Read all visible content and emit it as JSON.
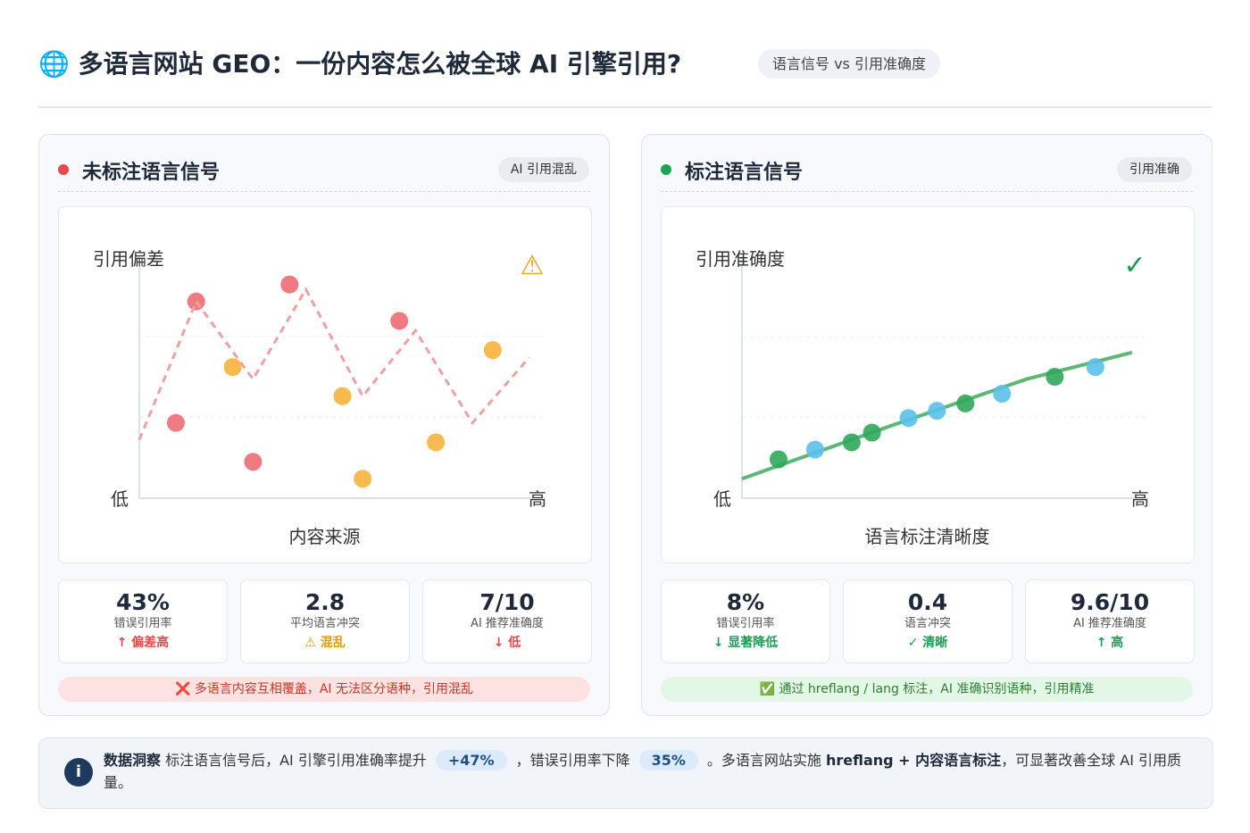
{
  "header": {
    "title": "🌐 多语言网站 GEO：一份内容怎么被全球 AI 引擎引用?",
    "badge": "语言信号 vs 引用准确度"
  },
  "panels": [
    {
      "title": "未标注语言信号",
      "dot_color": "#e5484d",
      "tag": "AI 引用混乱",
      "stats": [
        {
          "value": "43%",
          "label": "错误引用率",
          "note": "↑ 偏差高",
          "note_color": "#e5484d"
        },
        {
          "value": "2.8",
          "label": "平均语言冲突",
          "note": "⚠ 混乱",
          "note_color": "#e69b00"
        },
        {
          "value": "7/10",
          "label": "AI 推荐准确度",
          "note": "↓ 低",
          "note_color": "#e5484d"
        }
      ],
      "banner": "❌ 多语言内容互相覆盖，AI 无法区分语种，引用混乱",
      "banner_bg": "#fde2e2",
      "banner_color": "#c0392b"
    },
    {
      "title": "标注语言信号",
      "dot_color": "#1fa355",
      "tag": "引用准确",
      "stats": [
        {
          "value": "8%",
          "label": "错误引用率",
          "note": "↓ 显著降低",
          "note_color": "#1f9d55"
        },
        {
          "value": "0.4",
          "label": "语言冲突",
          "note": "✓ 清晰",
          "note_color": "#1f9d55"
        },
        {
          "value": "9.6/10",
          "label": "AI 推荐准确度",
          "note": "↑ 高",
          "note_color": "#1f9d55"
        }
      ],
      "banner": "✅ 通过 hreflang / lang 标注，AI 准确识别语种，引用精准",
      "banner_bg": "#e3f7e6",
      "banner_color": "#2e7d32"
    }
  ],
  "chart_data": [
    {
      "type": "scatter",
      "y_label": "引用偏差",
      "x_label": "内容来源",
      "low_label": "低",
      "high_label": "高",
      "marker": "⚠",
      "marker_color": "#f0a020",
      "xlim": [
        0,
        100
      ],
      "ylim": [
        0,
        100
      ],
      "series": [
        {
          "color": "#ee6b73",
          "x": [
            14,
            9,
            28,
            37,
            64
          ],
          "y": [
            81,
            31,
            15,
            88,
            73
          ]
        },
        {
          "color": "#f7b23b",
          "x": [
            23,
            50,
            55,
            73,
            87
          ],
          "y": [
            54,
            42,
            8,
            23,
            61
          ]
        },
        {
          "color": "#f0a0a0",
          "line": true,
          "dashed": true,
          "x": [
            0,
            14,
            28,
            41,
            55,
            68,
            82,
            96
          ],
          "y": [
            24,
            81,
            49,
            86,
            42,
            69,
            31,
            58
          ]
        }
      ]
    },
    {
      "type": "scatter",
      "y_label": "引用准确度",
      "x_label": "语言标注清晰度",
      "low_label": "低",
      "high_label": "高",
      "marker": "✓",
      "marker_color": "#1f9d55",
      "xlim": [
        0,
        100
      ],
      "ylim": [
        0,
        100
      ],
      "series": [
        {
          "color": "#5cb874",
          "line": true,
          "dashed": false,
          "x": [
            0,
            37,
            70,
            96
          ],
          "y": [
            8,
            30,
            49,
            60
          ]
        },
        {
          "color": "#2fa85a",
          "x": [
            9,
            27,
            32,
            55,
            77
          ],
          "y": [
            16,
            23,
            27,
            39,
            50
          ]
        },
        {
          "color": "#5bc0eb",
          "x": [
            18,
            41,
            48,
            64,
            87
          ],
          "y": [
            20,
            33,
            36,
            43,
            54
          ]
        }
      ]
    }
  ],
  "insight": {
    "icon": "i",
    "segments": [
      {
        "text": "数据洞察",
        "style": "bold"
      },
      {
        "text": " 标注语言信号后，AI 引擎引用准确率提升"
      },
      {
        "text": "+47%",
        "style": "pill"
      },
      {
        "text": "，错误引用率下降"
      },
      {
        "text": "35%",
        "style": "pill"
      },
      {
        "text": "。多语言网站实施 "
      },
      {
        "text": "hreflang + 内容语言标注",
        "style": "bold"
      },
      {
        "text": "，可显著改善全球 AI 引用质量。"
      }
    ]
  }
}
